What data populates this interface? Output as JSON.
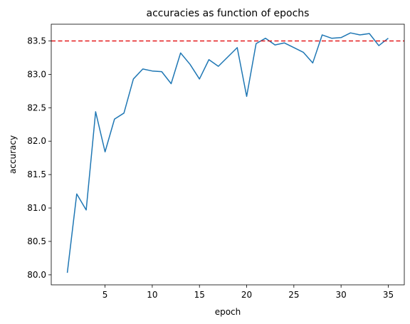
{
  "chart_data": {
    "type": "line",
    "title": "accuracies as function of epochs",
    "xlabel": "epoch",
    "ylabel": "accuracy",
    "xlim": [
      -0.7,
      36.7
    ],
    "ylim": [
      79.85,
      83.75
    ],
    "xticks": [
      5,
      10,
      15,
      20,
      25,
      30,
      35
    ],
    "yticks": [
      80.0,
      80.5,
      81.0,
      81.5,
      82.0,
      82.5,
      83.0,
      83.5
    ],
    "ytick_labels": [
      "80.0",
      "80.5",
      "81.0",
      "81.5",
      "82.0",
      "82.5",
      "83.0",
      "83.5"
    ],
    "grid": false,
    "series": [
      {
        "color": "#1f77b4",
        "x": [
          1,
          2,
          3,
          4,
          5,
          6,
          7,
          8,
          9,
          10,
          11,
          12,
          13,
          14,
          15,
          16,
          17,
          18,
          19,
          20,
          21,
          22,
          23,
          24,
          25,
          26,
          27,
          28,
          29,
          30,
          31,
          32,
          33,
          34,
          35
        ],
        "values": [
          80.03,
          81.21,
          80.97,
          82.44,
          81.84,
          82.33,
          82.42,
          82.93,
          83.08,
          83.05,
          83.04,
          82.86,
          83.32,
          83.15,
          82.93,
          83.22,
          83.12,
          83.26,
          83.4,
          82.67,
          83.46,
          83.54,
          83.44,
          83.47,
          83.4,
          83.33,
          83.17,
          83.59,
          83.54,
          83.55,
          83.62,
          83.59,
          83.61,
          83.43,
          83.54
        ]
      }
    ],
    "reference_line": {
      "y": 83.5,
      "color": "#e41a1c",
      "style": "dashed"
    }
  }
}
